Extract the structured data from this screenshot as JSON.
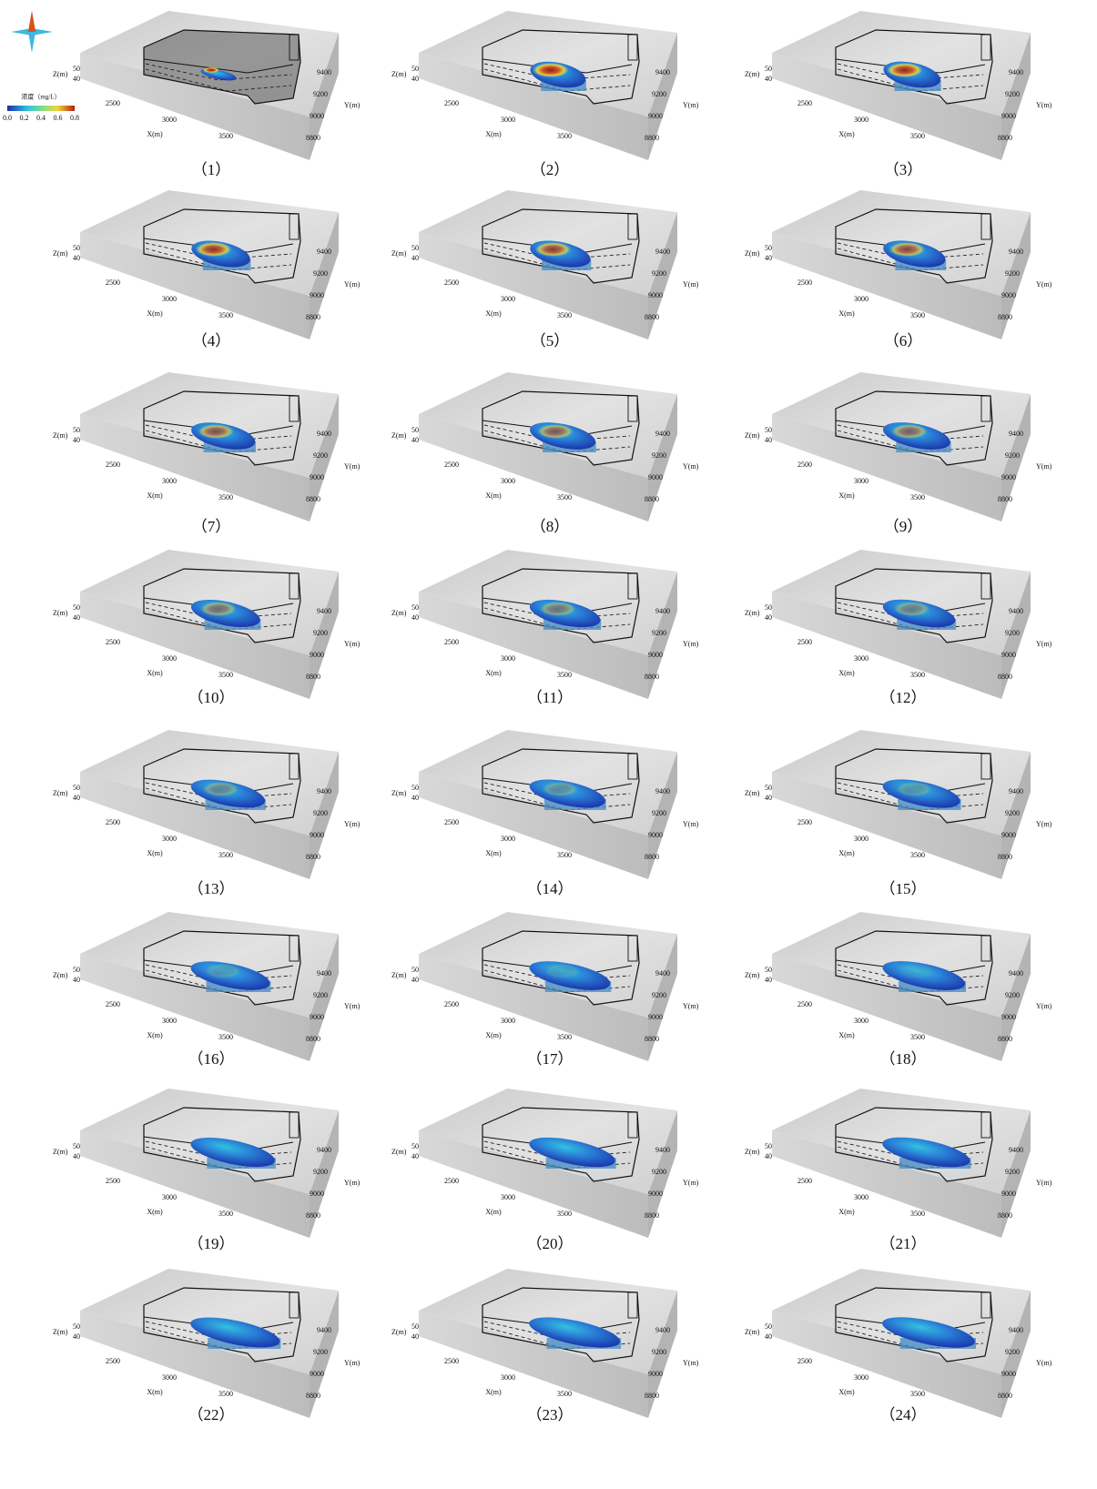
{
  "legend": {
    "title": "浓度（mg/L）",
    "ticks": [
      "0.0",
      "0.2",
      "0.4",
      "0.6",
      "0.8"
    ]
  },
  "axes": {
    "z_label": "Z(m)",
    "z_ticks": [
      "50",
      "40"
    ],
    "x_label": "X(m)",
    "x_ticks": [
      "2500",
      "3000",
      "3500"
    ],
    "y_label": "Y(m)",
    "y_ticks": [
      "9400",
      "9200",
      "9000",
      "8800"
    ]
  },
  "panels": [
    "（1）",
    "（2）",
    "（3）",
    "（4）",
    "（5）",
    "（6）",
    "（7）",
    "（8）",
    "（9）",
    "（10）",
    "（11）",
    "（12）",
    "（13）",
    "（14）",
    "（15）",
    "（16）",
    "（17）",
    "（18）",
    "（19）",
    "（20）",
    "（21）",
    "（22）",
    "（23）",
    "（24）"
  ]
}
